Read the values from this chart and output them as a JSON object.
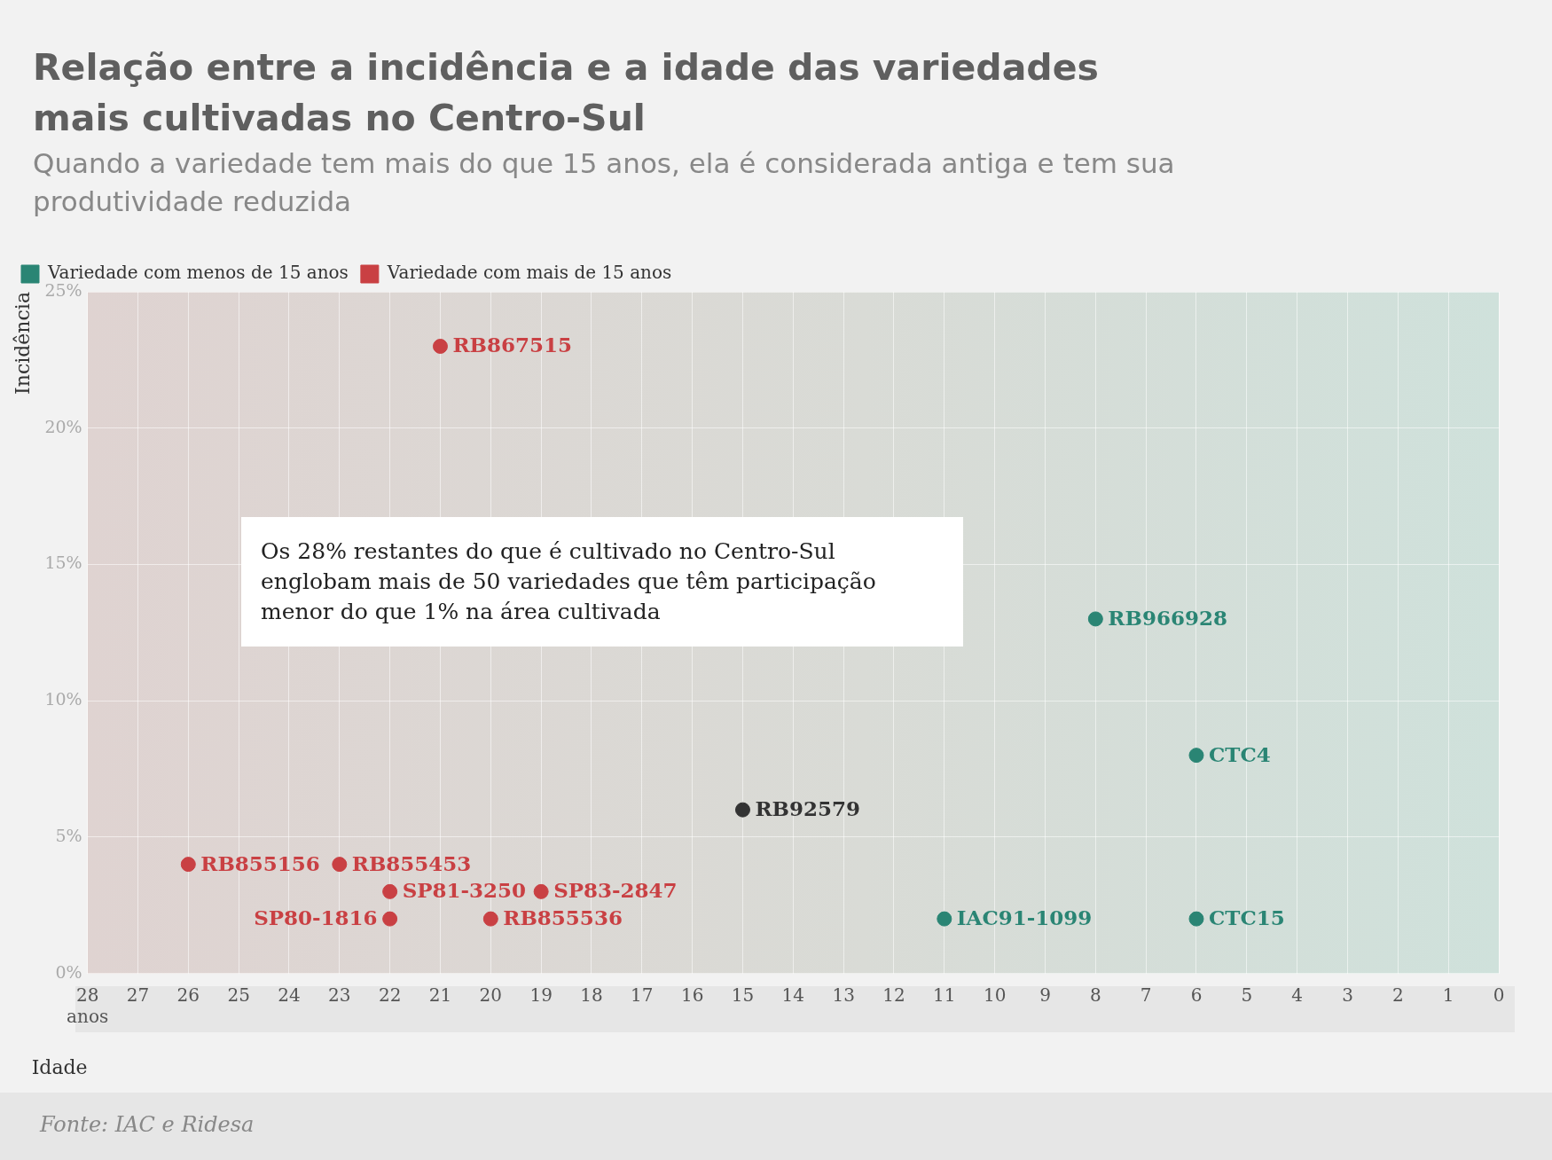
{
  "chart_data": {
    "type": "scatter",
    "title": "Relação entre a incidência e a idade das variedades mais cultivadas no Centro-Sul",
    "subtitle": "Quando a variedade tem mais do que 15 anos, ela é considerada antiga e tem sua produtividade reduzida",
    "xlabel": "Idade",
    "ylabel": "Incidência",
    "xlim": [
      28,
      0
    ],
    "xticks": [
      {
        "value": 28,
        "label": "28\nanos"
      },
      27,
      26,
      25,
      24,
      23,
      22,
      21,
      20,
      19,
      18,
      17,
      16,
      15,
      14,
      13,
      12,
      11,
      10,
      9,
      8,
      7,
      6,
      5,
      4,
      3,
      2,
      1,
      0
    ],
    "ylim": [
      0,
      25
    ],
    "yticks": [
      {
        "value": 0,
        "label": "0%"
      },
      {
        "value": 5,
        "label": "5%"
      },
      {
        "value": 10,
        "label": "10%"
      },
      {
        "value": 15,
        "label": "15%"
      },
      {
        "value": 20,
        "label": "20%"
      },
      {
        "value": 25,
        "label": "25%"
      }
    ],
    "grid": true,
    "legend": "top left",
    "marker": "circle",
    "series": [
      {
        "name": "Variedade com menos de 15 anos",
        "color": "#2a8574",
        "x": [
          8,
          6,
          11,
          6
        ],
        "values": [
          13,
          8,
          2,
          2
        ],
        "value_labels": [
          "RB966928",
          "CTC4",
          "IAC91-1099",
          "CTC15"
        ]
      },
      {
        "name": "Variedade com mais de 15 anos",
        "color": "#c94043",
        "x": [
          21,
          26,
          23,
          22,
          19,
          22,
          20
        ],
        "values": [
          23,
          4,
          4,
          3,
          3,
          2,
          2
        ],
        "value_labels": [
          "RB867515",
          "RB855156",
          "RB855453",
          "SP81-3250",
          "SP83-2847",
          "SP80-1816",
          "RB855536"
        ]
      },
      {
        "color": "#333333",
        "x": [
          15
        ],
        "values": [
          6
        ],
        "value_labels": [
          "RB92579"
        ]
      }
    ],
    "annotations": [
      "Os 28% restantes do que é cultivado no Centro-Sul englobam mais de 50 variedades que têm participação menor do que 1% na área cultivada",
      "Fonte: IAC e Ridesa"
    ]
  }
}
